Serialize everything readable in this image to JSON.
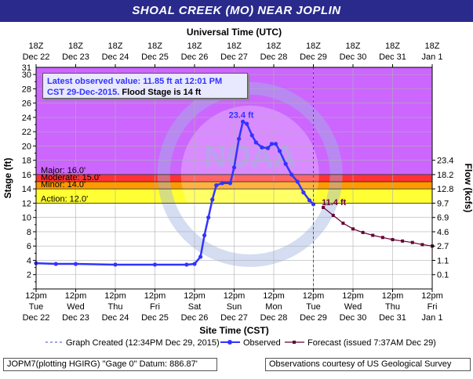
{
  "title": "SHOAL CREEK (MO) NEAR JOPLIN",
  "top_axis_label": "Universal Time (UTC)",
  "top_ticks": [
    {
      "time": "18Z",
      "date": "Dec 22"
    },
    {
      "time": "18Z",
      "date": "Dec 23"
    },
    {
      "time": "18Z",
      "date": "Dec 24"
    },
    {
      "time": "18Z",
      "date": "Dec 25"
    },
    {
      "time": "18Z",
      "date": "Dec 26"
    },
    {
      "time": "18Z",
      "date": "Dec 27"
    },
    {
      "time": "18Z",
      "date": "Dec 28"
    },
    {
      "time": "18Z",
      "date": "Dec 29"
    },
    {
      "time": "18Z",
      "date": "Dec 30"
    },
    {
      "time": "18Z",
      "date": "Dec 31"
    },
    {
      "time": "18Z",
      "date": "Jan 1"
    }
  ],
  "bottom_axis_label": "Site Time (CST)",
  "bottom_ticks": [
    {
      "time": "12pm",
      "day": "Tue",
      "date": "Dec 22"
    },
    {
      "time": "12pm",
      "day": "Wed",
      "date": "Dec 23"
    },
    {
      "time": "12pm",
      "day": "Thu",
      "date": "Dec 24"
    },
    {
      "time": "12pm",
      "day": "Fri",
      "date": "Dec 25"
    },
    {
      "time": "12pm",
      "day": "Sat",
      "date": "Dec 26"
    },
    {
      "time": "12pm",
      "day": "Sun",
      "date": "Dec 27"
    },
    {
      "time": "12pm",
      "day": "Mon",
      "date": "Dec 28"
    },
    {
      "time": "12pm",
      "day": "Tue",
      "date": "Dec 29"
    },
    {
      "time": "12pm",
      "day": "Wed",
      "date": "Dec 30"
    },
    {
      "time": "12pm",
      "day": "Thu",
      "date": "Dec 31"
    },
    {
      "time": "12pm",
      "day": "Fri",
      "date": "Jan 1"
    }
  ],
  "left_axis_label": "Stage (ft)",
  "right_axis_label": "Flow (kcfs)",
  "flow_ticks": [
    {
      "stage": 2,
      "label": "0.1"
    },
    {
      "stage": 4,
      "label": "1.1"
    },
    {
      "stage": 6,
      "label": "2.7"
    },
    {
      "stage": 8,
      "label": "4.6"
    },
    {
      "stage": 10,
      "label": "6.9"
    },
    {
      "stage": 12,
      "label": "9.7"
    },
    {
      "stage": 14,
      "label": "12.8"
    },
    {
      "stage": 16,
      "label": "18.2"
    },
    {
      "stage": 18,
      "label": "23.4"
    }
  ],
  "info_box": {
    "line1": "Latest observed value: 11.85 ft at 12:01 PM",
    "line2_date": "CST 29-Dec-2015.",
    "line2_flood": "Flood Stage is 14 ft"
  },
  "flood_categories": [
    {
      "label": "Major: 16.0'",
      "stage": 16.0,
      "color": "#cc66ff"
    },
    {
      "label": "Moderate: 15.0'",
      "stage": 15.0,
      "color": "#ff3333"
    },
    {
      "label": "Minor: 14.0'",
      "stage": 14.0,
      "color": "#ff9900"
    },
    {
      "label": "Action: 12.0'",
      "stage": 12.0,
      "color": "#ffff33"
    }
  ],
  "peak_label": "23.4 ft",
  "last_label": "11.4 ft",
  "legend": {
    "created": "Graph Created (12:34PM Dec 29, 2015)",
    "observed": "Observed",
    "forecast": "Forecast (issued 7:37AM Dec 29)"
  },
  "footer": {
    "left": "JOPM7(plotting HGIRG) \"Gage 0\" Datum: 886.87'",
    "right": "Observations courtesy of US Geological Survey"
  },
  "watermark": "NOAA",
  "colors": {
    "observed": "#3333ff",
    "forecast": "#660033",
    "title_bg": "#2a2a8c"
  },
  "chart_data": {
    "type": "line",
    "xunit": "days after 12pm CST Dec 22",
    "ylabel": "Stage (ft)",
    "ylim": [
      0,
      31
    ],
    "xlim": [
      0,
      10
    ],
    "grid": true,
    "series": [
      {
        "name": "Observed",
        "points": [
          [
            0,
            3.6
          ],
          [
            0.5,
            3.5
          ],
          [
            1,
            3.5
          ],
          [
            2,
            3.4
          ],
          [
            3,
            3.4
          ],
          [
            3.8,
            3.4
          ],
          [
            4,
            3.5
          ],
          [
            4.15,
            4.5
          ],
          [
            4.25,
            7.5
          ],
          [
            4.35,
            10
          ],
          [
            4.45,
            12.5
          ],
          [
            4.55,
            14.5
          ],
          [
            4.7,
            14.8
          ],
          [
            4.9,
            14.8
          ],
          [
            5.0,
            17
          ],
          [
            5.12,
            21
          ],
          [
            5.22,
            23.4
          ],
          [
            5.32,
            23.1
          ],
          [
            5.45,
            21.5
          ],
          [
            5.55,
            20.5
          ],
          [
            5.7,
            19.8
          ],
          [
            5.85,
            19.7
          ],
          [
            5.95,
            20.3
          ],
          [
            6.05,
            20.3
          ],
          [
            6.15,
            19.3
          ],
          [
            6.3,
            17.5
          ],
          [
            6.45,
            16
          ],
          [
            6.6,
            15
          ],
          [
            6.75,
            13.5
          ],
          [
            6.9,
            12.4
          ],
          [
            7.0,
            11.85
          ]
        ]
      },
      {
        "name": "Forecast",
        "points": [
          [
            7.25,
            11.4
          ],
          [
            7.5,
            10.3
          ],
          [
            7.75,
            9.2
          ],
          [
            8.0,
            8.4
          ],
          [
            8.25,
            7.9
          ],
          [
            8.5,
            7.5
          ],
          [
            8.75,
            7.2
          ],
          [
            9.0,
            6.9
          ],
          [
            9.25,
            6.7
          ],
          [
            9.5,
            6.5
          ],
          [
            9.75,
            6.2
          ],
          [
            10.0,
            6.0
          ]
        ]
      }
    ]
  }
}
